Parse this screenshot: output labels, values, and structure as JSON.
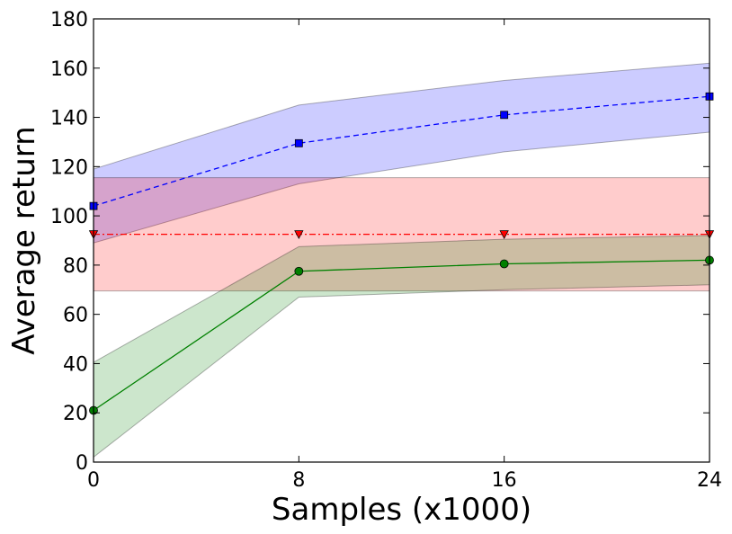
{
  "chart_data": {
    "type": "line",
    "title": "",
    "xlabel": "Samples (x1000)",
    "ylabel": "Average return",
    "x": [
      0,
      8,
      16,
      24
    ],
    "xlim": [
      0,
      24
    ],
    "ylim": [
      0,
      180
    ],
    "xticks": [
      0,
      8,
      16,
      24
    ],
    "yticks": [
      0,
      20,
      40,
      60,
      80,
      100,
      120,
      140,
      160,
      180
    ],
    "grid": false,
    "legend": "none",
    "series": [
      {
        "name": "blue",
        "color": "#0000ff",
        "fill_color": "#0000ff",
        "line_style": "dashed",
        "marker": "square",
        "values": [
          104,
          129.5,
          141,
          148.5
        ],
        "lower": [
          89,
          113,
          126,
          134
        ],
        "upper": [
          119,
          145,
          155,
          162
        ]
      },
      {
        "name": "red",
        "color": "#ff0000",
        "fill_color": "#ff0000",
        "line_style": "dashdot",
        "marker": "triangle-down",
        "values": [
          92.5,
          92.5,
          92.5,
          92.5
        ],
        "lower": [
          69.5,
          69.5,
          69.5,
          69.5
        ],
        "upper": [
          115.5,
          115.5,
          115.5,
          115.5
        ]
      },
      {
        "name": "green",
        "color": "#008000",
        "fill_color": "#008000",
        "line_style": "solid",
        "marker": "circle",
        "values": [
          21,
          77.5,
          80.5,
          82
        ],
        "lower": [
          2,
          67,
          70,
          72
        ],
        "upper": [
          40.5,
          87.5,
          90.5,
          92
        ]
      }
    ]
  }
}
